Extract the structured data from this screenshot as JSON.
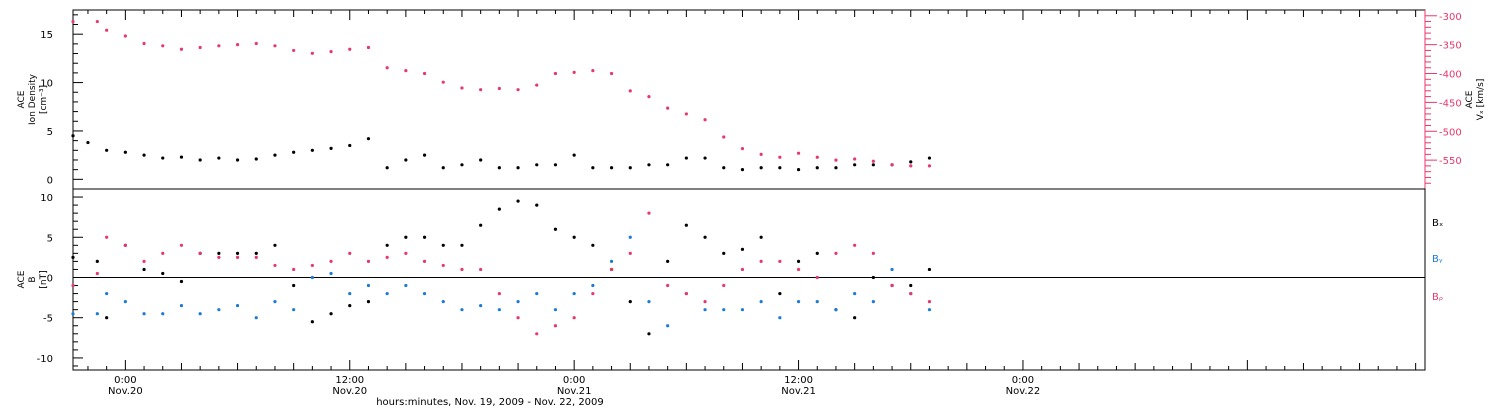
{
  "chart_data": [
    {
      "type": "scatter",
      "panel": "plasma",
      "left_ylabel_lines": [
        "ACE",
        "Ion Density",
        "[cm⁻³]"
      ],
      "right_ylabel_lines": [
        "ACE",
        "Vₓ [km/s]"
      ],
      "ylim_left": [
        -1,
        17.5
      ],
      "yticks_left": [
        0,
        5,
        10,
        15
      ],
      "ylim_right": [
        -600,
        -290
      ],
      "yticks_right": [
        -300,
        -350,
        -400,
        -450,
        -500,
        -550
      ],
      "xlim_hours": [
        -2.8,
        69.5
      ],
      "series": [
        {
          "axis": "left",
          "color": "#000000",
          "x": [
            -2.8,
            -2,
            -1,
            0,
            1,
            2,
            3,
            4,
            5,
            6,
            7,
            8,
            9,
            10,
            11,
            12,
            13,
            14,
            15,
            16,
            17,
            18,
            19,
            20,
            21,
            22,
            23,
            24,
            25,
            26,
            27,
            28,
            29,
            30,
            31,
            32,
            33,
            34,
            35,
            36,
            37,
            38,
            39,
            40,
            41,
            42,
            43
          ],
          "y": [
            4.5,
            3.8,
            3,
            2.8,
            2.5,
            2.2,
            2.3,
            2,
            2.2,
            2,
            2.1,
            2.5,
            2.8,
            3,
            3.2,
            3.5,
            4.2,
            1.2,
            2,
            2.5,
            1.2,
            1.5,
            2,
            1.2,
            1.2,
            1.5,
            1.5,
            2.5,
            1.2,
            1.2,
            1.2,
            1.5,
            1.5,
            2.2,
            2.2,
            1.2,
            1,
            1.2,
            1.2,
            1,
            1.2,
            1.2,
            1.5,
            1.5,
            1.5,
            1.8,
            2.2
          ]
        },
        {
          "axis": "right",
          "color": "#e8386b",
          "x": [
            -2.8,
            -1.5,
            -1,
            0,
            1,
            2,
            3,
            4,
            5,
            6,
            7,
            8,
            9,
            10,
            11,
            12,
            13,
            14,
            15,
            16,
            17,
            18,
            19,
            20,
            21,
            22,
            23,
            24,
            25,
            26,
            27,
            28,
            29,
            30,
            31,
            32,
            33,
            34,
            35,
            36,
            37,
            38,
            39,
            40,
            41,
            42,
            43
          ],
          "y": [
            -310,
            -310,
            -325,
            -335,
            -348,
            -352,
            -358,
            -355,
            -352,
            -350,
            -348,
            -352,
            -360,
            -365,
            -362,
            -358,
            -355,
            -390,
            -395,
            -400,
            -415,
            -425,
            -428,
            -426,
            -428,
            -420,
            -400,
            -398,
            -395,
            -400,
            -430,
            -440,
            -460,
            -470,
            -480,
            -510,
            -530,
            -540,
            -545,
            -538,
            -545,
            -550,
            -548,
            -552,
            -558,
            -560,
            -560
          ]
        }
      ]
    },
    {
      "type": "scatter",
      "panel": "magnetic-field",
      "ylabel_lines": [
        "ACE",
        "B",
        "[nT]"
      ],
      "ylim": [
        -11.5,
        11
      ],
      "yticks": [
        -10,
        -5,
        0,
        5,
        10
      ],
      "xlim_hours": [
        -2.8,
        69.5
      ],
      "zero_line": true,
      "series": [
        {
          "name": "Bₓ",
          "color": "#000000",
          "x": [
            -2.8,
            -1.5,
            -1,
            0,
            1,
            2,
            3,
            4,
            5,
            6,
            7,
            8,
            9,
            10,
            11,
            12,
            13,
            14,
            15,
            16,
            17,
            18,
            19,
            20,
            21,
            22,
            23,
            24,
            25,
            26,
            27,
            28,
            29,
            30,
            31,
            32,
            33,
            34,
            35,
            36,
            37,
            38,
            39,
            40,
            41,
            42,
            43
          ],
          "y": [
            2.5,
            2,
            -5,
            4,
            1,
            0.5,
            -0.5,
            3,
            3,
            3,
            3,
            4,
            -1,
            -5.5,
            -4.5,
            -3.5,
            -3,
            4,
            5,
            5,
            4,
            4,
            6.5,
            8.5,
            9.5,
            9,
            6,
            5,
            4,
            1,
            -3,
            -7,
            2,
            6.5,
            5,
            3,
            3.5,
            5,
            -2,
            2,
            3,
            -4,
            -5,
            0,
            -1,
            -1,
            1
          ]
        },
        {
          "name": "Bᵧ",
          "color": "#1e7ad8",
          "x": [
            -2.8,
            -1.5,
            -1,
            0,
            1,
            2,
            3,
            4,
            5,
            6,
            7,
            8,
            9,
            10,
            11,
            12,
            13,
            14,
            15,
            16,
            17,
            18,
            19,
            20,
            21,
            22,
            23,
            24,
            25,
            26,
            27,
            28,
            29,
            30,
            31,
            32,
            33,
            34,
            35,
            36,
            37,
            38,
            39,
            40,
            41,
            42,
            43
          ],
          "y": [
            -4.5,
            -4.5,
            -2,
            -3,
            -4.5,
            -4.5,
            -3.5,
            -4.5,
            -4,
            -3.5,
            -5,
            -3,
            -4,
            0,
            0.5,
            -2,
            -1,
            -2,
            -1,
            -2,
            -3,
            -4,
            -3.5,
            -4,
            -3,
            -2,
            -4,
            -2,
            -1,
            2,
            5,
            -3,
            -6,
            -2,
            -4,
            -4,
            -4,
            -3,
            -5,
            -3,
            -3,
            -4,
            -2,
            -3,
            1,
            -2,
            -4
          ]
        },
        {
          "name": "Bᵨ",
          "color": "#e8386b",
          "x": [
            -2.8,
            -1.5,
            -1,
            0,
            1,
            2,
            3,
            4,
            5,
            6,
            7,
            8,
            9,
            10,
            11,
            12,
            13,
            14,
            15,
            16,
            17,
            18,
            19,
            20,
            21,
            22,
            23,
            24,
            25,
            26,
            27,
            28,
            29,
            30,
            31,
            32,
            33,
            34,
            35,
            36,
            37,
            38,
            39,
            40,
            41,
            42,
            43
          ],
          "y": [
            -1,
            0.5,
            5,
            4,
            2,
            3,
            4,
            3,
            2.5,
            2.5,
            2.5,
            1.5,
            1,
            1.5,
            2,
            3,
            2,
            2.5,
            3,
            2,
            1.5,
            1,
            1,
            -2,
            -5,
            -7,
            -6,
            -5,
            -2,
            1,
            3,
            8,
            -1,
            -2,
            -3,
            -1,
            1,
            2,
            2,
            1,
            0,
            3,
            4,
            3,
            -1,
            -2,
            -3
          ]
        }
      ]
    }
  ],
  "legend": {
    "bx": "Bₓ",
    "by": "Bᵧ",
    "bz": "Bᵨ"
  },
  "x_axis": {
    "ticks": [
      {
        "hour": 0,
        "time": "0:00",
        "date": "Nov.20"
      },
      {
        "hour": 12,
        "time": "12:00",
        "date": "Nov.20"
      },
      {
        "hour": 24,
        "time": "0:00",
        "date": "Nov.21"
      },
      {
        "hour": 36,
        "time": "12:00",
        "date": "Nov.21"
      },
      {
        "hour": 48,
        "time": "0:00",
        "date": "Nov.22"
      }
    ],
    "label": "hours:minutes, Nov. 19, 2009 - Nov. 22, 2009"
  }
}
